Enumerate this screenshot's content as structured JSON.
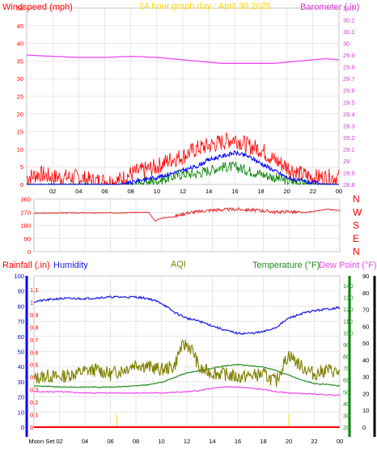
{
  "colors": {
    "wind": "#ff0000",
    "gust": "#ff0000",
    "avg": "#0000ff",
    "gust_mid": "#008000",
    "baro": "#ee44ee",
    "humid": "#1a1ae0",
    "aqi": "#808000",
    "temp": "#228b22",
    "dew": "#ee44ee",
    "rain": "#ff0000",
    "title": "#ffd700",
    "grid": "#d0d0d0",
    "axis": "#000000",
    "left_axis_bar": "#0000ff",
    "right_axis_bar": "#008000"
  },
  "chart_data": [
    {
      "type": "line",
      "title": "24 hour graph day : April 30 2025",
      "left_label": "Windspeed (mph)",
      "right_label": "Barometer (.in)",
      "x_ticks": [
        "02",
        "04",
        "06",
        "08",
        "10",
        "12",
        "14",
        "16",
        "18",
        "20",
        "22",
        "00"
      ],
      "left_ticks": [
        "0",
        "5",
        "10",
        "15",
        "20",
        "25",
        "30",
        "35",
        "40",
        "45",
        "50"
      ],
      "right_ticks": [
        "28.8",
        "28.9",
        "29",
        "29.1",
        "29.2",
        "29.3",
        "29.4",
        "29.5",
        "29.6",
        "29.7",
        "29.8",
        "29.9",
        "30",
        "30.1",
        "30.2",
        "30.3"
      ],
      "ylim_left": [
        0,
        50
      ],
      "ylim_right": [
        28.8,
        30.3
      ],
      "xlim": [
        0,
        24
      ],
      "barometer": {
        "x": [
          0,
          2,
          4,
          6,
          8,
          10,
          12,
          14,
          15,
          16,
          18,
          19,
          20,
          22,
          23,
          24
        ],
        "y": [
          29.9,
          29.89,
          29.88,
          29.88,
          29.89,
          29.88,
          29.86,
          29.84,
          29.83,
          29.83,
          29.83,
          29.83,
          29.84,
          29.86,
          29.87,
          29.86
        ]
      },
      "wind_gust": {
        "x": [
          0,
          1,
          2,
          3,
          4,
          5,
          6,
          7,
          8,
          9,
          10,
          11,
          12,
          13,
          14,
          15,
          16,
          17,
          18,
          19,
          20,
          21,
          22,
          23,
          24
        ],
        "y": [
          2,
          3,
          2,
          2,
          2,
          1,
          1,
          1,
          3,
          4,
          5,
          7,
          8,
          10,
          11,
          12,
          13,
          11,
          10,
          7,
          5,
          3,
          2,
          2,
          2
        ]
      },
      "wind_avg": {
        "x": [
          0,
          1,
          2,
          3,
          4,
          5,
          6,
          7,
          8,
          9,
          10,
          11,
          12,
          13,
          14,
          15,
          16,
          17,
          18,
          19,
          20,
          21,
          22,
          23,
          24
        ],
        "y": [
          0,
          0,
          0,
          0,
          0,
          0,
          0,
          0,
          0.5,
          1.5,
          2,
          3,
          4,
          5,
          7,
          8,
          9,
          8,
          6,
          4,
          2,
          1,
          0.5,
          0,
          0
        ]
      },
      "wind_mid": {
        "x": [
          0,
          1,
          2,
          3,
          4,
          5,
          6,
          7,
          8,
          9,
          10,
          11,
          12,
          13,
          14,
          15,
          16,
          17,
          18,
          19,
          20,
          21,
          22,
          23,
          24
        ],
        "y": [
          0,
          0,
          0,
          0,
          0,
          0,
          0,
          0,
          0,
          0.5,
          1,
          2,
          3,
          3,
          4,
          5,
          5,
          4,
          3,
          2,
          1,
          0.5,
          0,
          0,
          0
        ]
      }
    },
    {
      "type": "line",
      "left_ticks": [
        "0",
        "90",
        "180",
        "270",
        "360"
      ],
      "right_labels": [
        "N",
        "W",
        "S",
        "E",
        "N"
      ],
      "ylim": [
        0,
        360
      ],
      "direction": {
        "x": [
          0,
          2,
          4,
          6,
          8,
          9,
          9.5,
          10,
          11,
          12,
          14,
          16,
          18,
          19,
          20,
          21,
          22,
          23,
          24
        ],
        "y": [
          262,
          265,
          265,
          265,
          268,
          268,
          210,
          230,
          240,
          265,
          285,
          290,
          280,
          270,
          275,
          265,
          275,
          290,
          280
        ]
      }
    },
    {
      "type": "line",
      "labels": {
        "rainfall": "Rainfall (.in)",
        "humidity": "Humidity",
        "aqi": "AQI",
        "temp": "Temperature (°F)",
        "dew": "Dew Point (°F)"
      },
      "left_ticks": [
        "0",
        "10",
        "20",
        "30",
        "40",
        "50",
        "60",
        "70",
        "80",
        "90",
        "100"
      ],
      "rain_ticks": [
        "0",
        "0.1",
        "0.2",
        "0.3",
        "0.4",
        "0.5",
        "0.6",
        "0.7",
        "0.8",
        "0.9",
        "1",
        "1.1"
      ],
      "temp_ticks": [
        "20",
        "30",
        "40",
        "50",
        "60",
        "70",
        "80",
        "90",
        "100",
        "110",
        "120",
        "130",
        "140"
      ],
      "far_right_ticks": [
        "0",
        "10",
        "20",
        "30",
        "40",
        "50",
        "60",
        "70",
        "80",
        "90"
      ],
      "x_ticks": [
        "Moon Set",
        "02",
        "04",
        "06",
        "08",
        "10",
        "12",
        "14",
        "16",
        "18",
        "20",
        "22",
        "00"
      ],
      "humidity": {
        "x": [
          0,
          2,
          4,
          6,
          8,
          9,
          10,
          11,
          12,
          13,
          14,
          15,
          16,
          17,
          18,
          19,
          20,
          21,
          22,
          23,
          24
        ],
        "y": [
          83,
          85,
          85,
          86,
          86,
          85,
          82,
          76,
          72,
          70,
          67,
          64,
          62,
          62,
          63,
          66,
          72,
          75,
          77,
          78,
          79
        ]
      },
      "aqi": {
        "x": [
          0,
          1,
          2,
          3,
          4,
          5,
          6,
          7,
          8,
          9,
          10,
          11,
          11.5,
          12,
          12.5,
          13,
          14,
          15,
          16,
          17,
          18,
          19,
          19.5,
          20,
          21,
          22,
          23,
          24
        ],
        "y": [
          32,
          34,
          33,
          35,
          37,
          38,
          35,
          38,
          42,
          40,
          38,
          40,
          52,
          55,
          50,
          38,
          36,
          35,
          33,
          34,
          35,
          30,
          40,
          48,
          40,
          35,
          38,
          36
        ]
      },
      "temp": {
        "x": [
          0,
          2,
          4,
          6,
          8,
          9,
          10,
          11,
          12,
          13,
          14,
          15,
          16,
          17,
          18,
          19,
          20,
          21,
          22,
          23,
          24
        ],
        "y": [
          55,
          54,
          54,
          54,
          55,
          56,
          58,
          62,
          66,
          68,
          70,
          72,
          73,
          72,
          71,
          68,
          64,
          60,
          57,
          56,
          55
        ]
      },
      "dew": {
        "x": [
          0,
          2,
          4,
          6,
          8,
          10,
          12,
          13,
          14,
          15,
          16,
          17,
          18,
          19,
          20,
          22,
          24
        ],
        "y": [
          50,
          50,
          49,
          49,
          49,
          49,
          50,
          51,
          53,
          54,
          54,
          53,
          52,
          50,
          49,
          48,
          47
        ]
      },
      "rain": {
        "x": [
          0,
          24
        ],
        "y": [
          0,
          0
        ]
      },
      "moon_markers": [
        6.5,
        20
      ]
    }
  ]
}
